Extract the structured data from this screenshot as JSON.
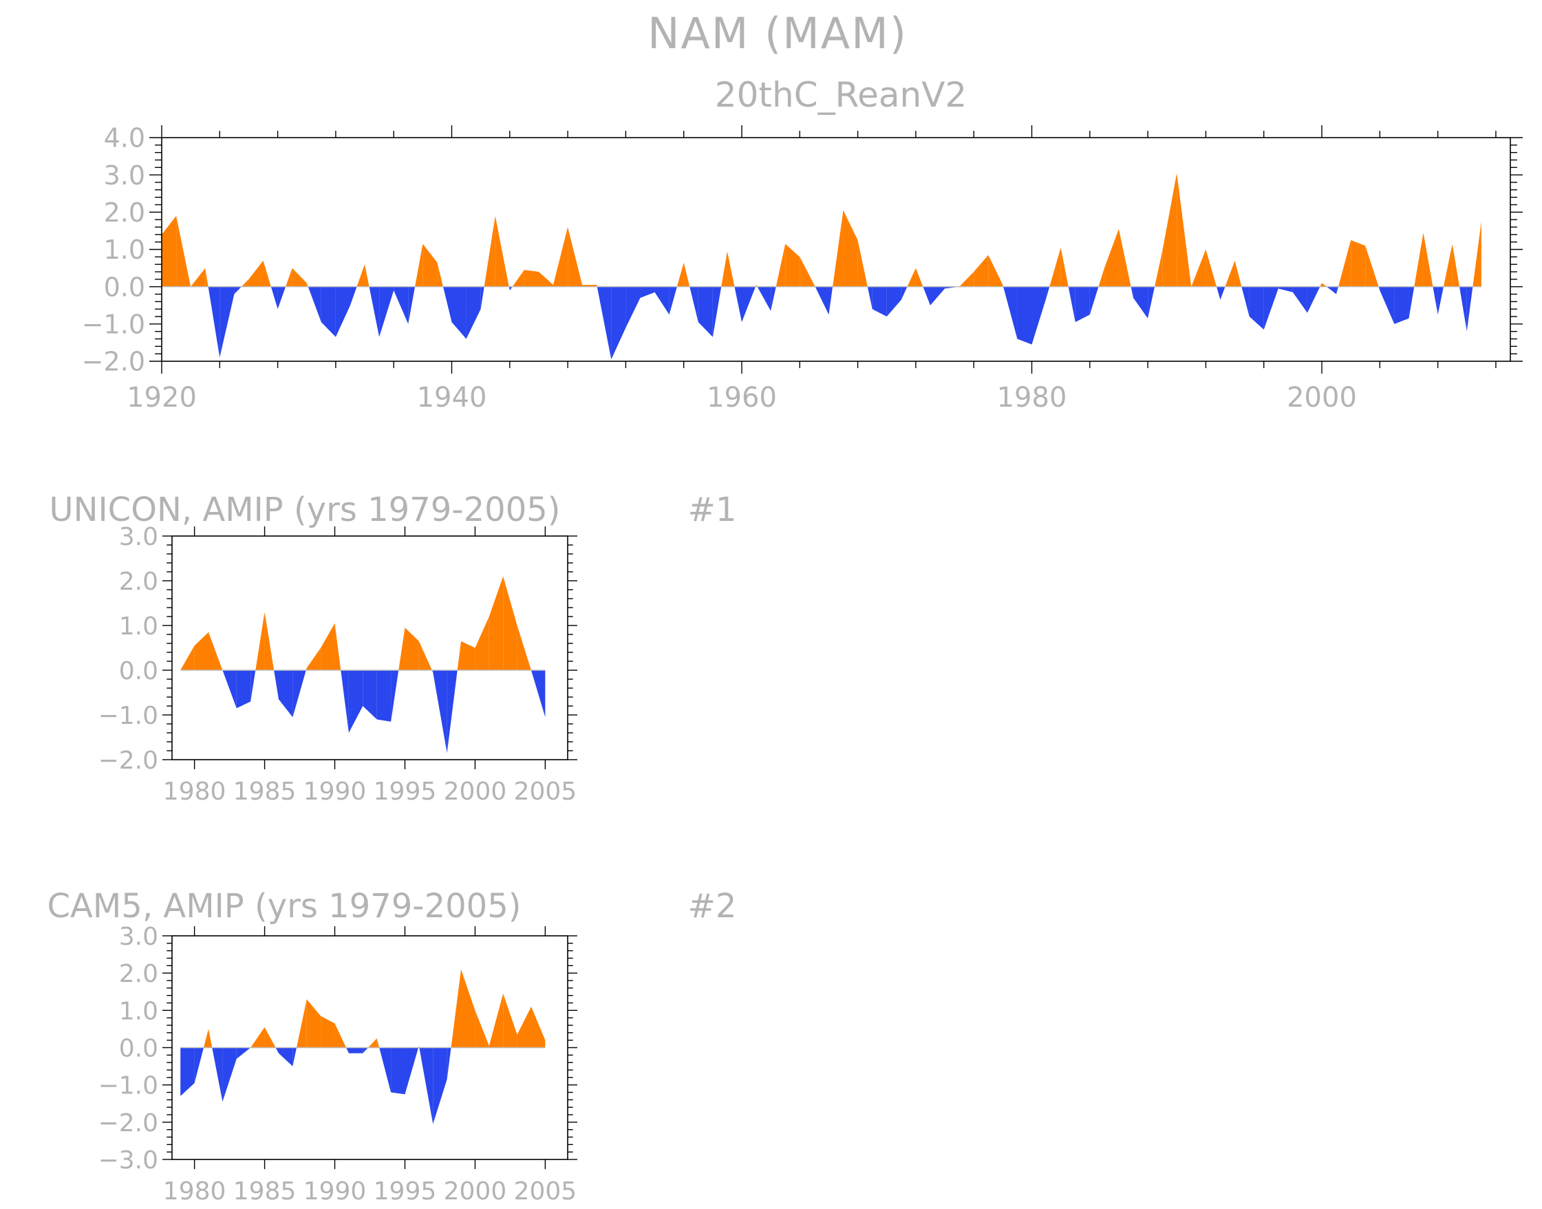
{
  "page": {
    "title": "NAM  (MAM)",
    "colors": {
      "positive": "#ff8000",
      "negative": "#2a46ee",
      "text": "#b3b3b3",
      "axis": "#000000"
    }
  },
  "chart_data": [
    {
      "type": "area",
      "title": "20thC_ReanV2",
      "xlabel": "",
      "ylabel": "",
      "xlim": [
        1920,
        2013
      ],
      "ylim": [
        -2.0,
        4.0
      ],
      "x_ticks": [
        1920,
        1940,
        1960,
        1980,
        2000
      ],
      "y_ticks": [
        "-2.0",
        "-1.0",
        "0.0",
        "1.0",
        "2.0",
        "3.0",
        "4.0"
      ],
      "x": [
        1920,
        1921,
        1922,
        1923,
        1924,
        1925,
        1926,
        1927,
        1928,
        1929,
        1930,
        1931,
        1932,
        1933,
        1934,
        1935,
        1936,
        1937,
        1938,
        1939,
        1940,
        1941,
        1942,
        1943,
        1944,
        1945,
        1946,
        1947,
        1948,
        1949,
        1950,
        1951,
        1952,
        1953,
        1954,
        1955,
        1956,
        1957,
        1958,
        1959,
        1960,
        1961,
        1962,
        1963,
        1964,
        1965,
        1966,
        1967,
        1968,
        1969,
        1970,
        1971,
        1972,
        1973,
        1974,
        1975,
        1976,
        1977,
        1978,
        1979,
        1980,
        1981,
        1982,
        1983,
        1984,
        1985,
        1986,
        1987,
        1988,
        1989,
        1990,
        1991,
        1992,
        1993,
        1994,
        1995,
        1996,
        1997,
        1998,
        1999,
        2000,
        2001,
        2002,
        2003,
        2004,
        2005,
        2006,
        2007,
        2008,
        2009,
        2010,
        2011
      ],
      "values": [
        1.4,
        1.9,
        0.0,
        0.5,
        -1.9,
        -0.2,
        0.2,
        0.7,
        -0.6,
        0.5,
        0.1,
        -0.95,
        -1.35,
        -0.5,
        0.6,
        -1.35,
        -0.1,
        -1.0,
        1.15,
        0.65,
        -0.95,
        -1.4,
        -0.6,
        1.9,
        -0.1,
        0.45,
        0.4,
        0.05,
        1.6,
        0.05,
        0.05,
        -1.95,
        -1.1,
        -0.3,
        -0.15,
        -0.75,
        0.65,
        -0.95,
        -1.35,
        0.95,
        -0.95,
        0.05,
        -0.65,
        1.15,
        0.8,
        0.05,
        -0.75,
        2.05,
        1.25,
        -0.6,
        -0.8,
        -0.35,
        0.5,
        -0.5,
        -0.05,
        0.0,
        0.4,
        0.85,
        0.05,
        -1.4,
        -1.55,
        -0.3,
        1.05,
        -0.95,
        -0.75,
        0.5,
        1.55,
        -0.3,
        -0.85,
        0.95,
        3.05,
        0.0,
        1.0,
        -0.35,
        0.7,
        -0.8,
        -1.15,
        -0.05,
        -0.15,
        -0.7,
        0.1,
        -0.2,
        1.25,
        1.1,
        -0.1,
        -1.0,
        -0.85,
        1.45,
        -0.75,
        1.15,
        -1.2,
        1.75
      ]
    },
    {
      "type": "area",
      "title": "UNICON, AMIP (yrs 1979-2005)",
      "label": "#1",
      "xlabel": "",
      "ylabel": "",
      "xlim": [
        1978.4,
        2006.6
      ],
      "ylim": [
        -2.0,
        3.0
      ],
      "x_ticks": [
        1980,
        1985,
        1990,
        1995,
        2000,
        2005
      ],
      "y_ticks": [
        "-2.0",
        "-1.0",
        "0.0",
        "1.0",
        "2.0",
        "3.0"
      ],
      "x": [
        1979,
        1980,
        1981,
        1982,
        1983,
        1984,
        1985,
        1986,
        1987,
        1988,
        1989,
        1990,
        1991,
        1992,
        1993,
        1994,
        1995,
        1996,
        1997,
        1998,
        1999,
        2000,
        2001,
        2002,
        2003,
        2004,
        2005
      ],
      "values": [
        0.0,
        0.55,
        0.85,
        0.0,
        -0.85,
        -0.7,
        1.3,
        -0.65,
        -1.05,
        0.05,
        0.5,
        1.05,
        -1.4,
        -0.8,
        -1.1,
        -1.15,
        0.95,
        0.65,
        -0.05,
        -1.85,
        0.65,
        0.5,
        1.2,
        2.1,
        1.0,
        0.0,
        -1.05
      ]
    },
    {
      "type": "area",
      "title": "CAM5, AMIP (yrs 1979-2005)",
      "label": "#2",
      "xlabel": "",
      "ylabel": "",
      "xlim": [
        1978.4,
        2006.6
      ],
      "ylim": [
        -3.0,
        3.0
      ],
      "x_ticks": [
        1980,
        1985,
        1990,
        1995,
        2000,
        2005
      ],
      "y_ticks": [
        "-3.0",
        "-2.0",
        "-1.0",
        "0.0",
        "1.0",
        "2.0",
        "3.0"
      ],
      "x": [
        1979,
        1980,
        1981,
        1982,
        1983,
        1984,
        1985,
        1986,
        1987,
        1988,
        1989,
        1990,
        1991,
        1992,
        1993,
        1994,
        1995,
        1996,
        1997,
        1998,
        1999,
        2000,
        2001,
        2002,
        2003,
        2004,
        2005
      ],
      "values": [
        -1.3,
        -0.95,
        0.5,
        -1.45,
        -0.3,
        0.0,
        0.55,
        -0.15,
        -0.5,
        1.3,
        0.85,
        0.65,
        -0.15,
        -0.15,
        0.25,
        -1.2,
        -1.25,
        0.05,
        -2.05,
        -0.85,
        2.1,
        1.0,
        0.05,
        1.45,
        0.35,
        1.1,
        0.2
      ]
    }
  ]
}
